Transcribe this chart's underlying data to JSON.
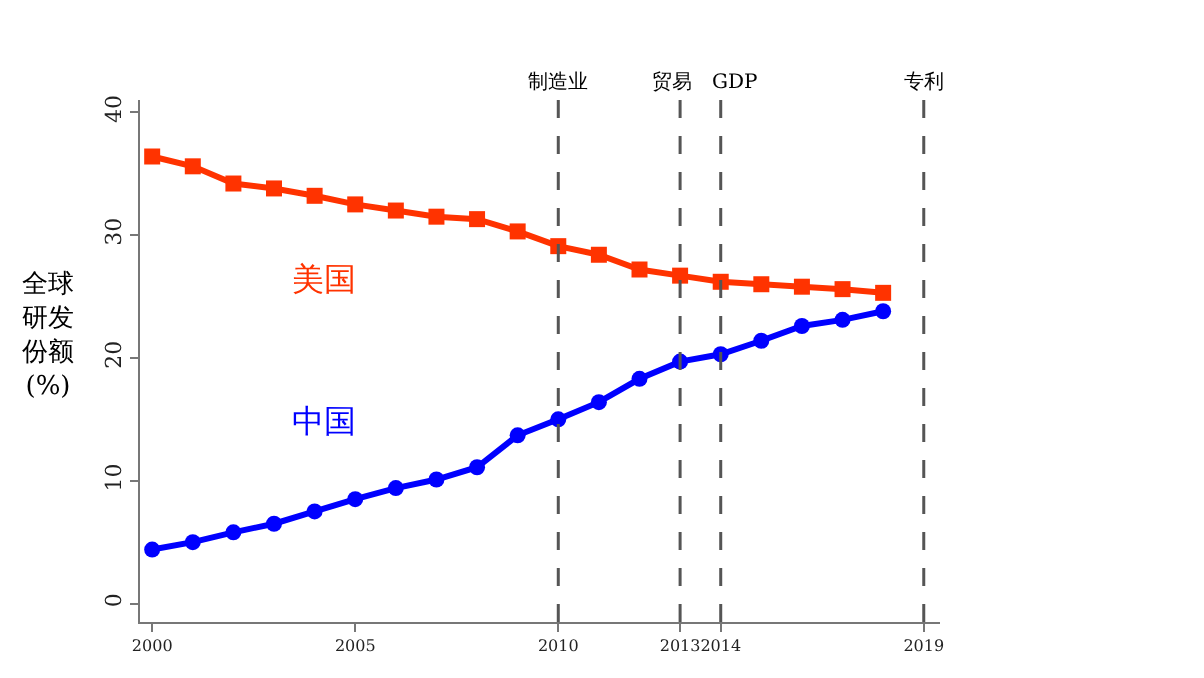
{
  "chart_data": {
    "type": "line",
    "ylabel": "全球研发份额(%)",
    "x": [
      2000,
      2001,
      2002,
      2003,
      2004,
      2005,
      2006,
      2007,
      2008,
      2009,
      2010,
      2011,
      2012,
      2013,
      2014,
      2015,
      2016,
      2017,
      2018
    ],
    "series": [
      {
        "name": "美国",
        "color": "#ff3300",
        "marker": "square",
        "values": [
          36.4,
          35.6,
          34.2,
          33.8,
          33.2,
          32.5,
          32.0,
          31.5,
          31.3,
          30.3,
          29.1,
          28.4,
          27.2,
          26.7,
          26.2,
          26.0,
          25.8,
          25.6,
          25.3
        ]
      },
      {
        "name": "中国",
        "color": "#0000ff",
        "marker": "circle",
        "values": [
          4.4,
          5.0,
          5.8,
          6.5,
          7.5,
          8.5,
          9.4,
          10.1,
          11.1,
          13.7,
          15.0,
          16.4,
          18.3,
          19.7,
          20.3,
          21.4,
          22.6,
          23.1,
          23.8
        ]
      }
    ],
    "xlim": [
      1999.7,
      2019.4
    ],
    "xticks": [
      2000,
      2005,
      2010,
      2013,
      2014,
      2019
    ],
    "ylim": [
      -1.5,
      41
    ],
    "yticks": [
      0,
      10,
      20,
      30,
      40
    ],
    "ref_lines": [
      {
        "axis": "x",
        "value": 2010,
        "label": "制造业",
        "line_style": "dashed"
      },
      {
        "axis": "x",
        "value": 2013,
        "label": "贸易",
        "line_style": "dashed"
      },
      {
        "axis": "x",
        "value": 2014,
        "label": "GDP",
        "line_style": "dashed"
      },
      {
        "axis": "x",
        "value": 2019,
        "label": "专利",
        "line_style": "dashed"
      }
    ],
    "grid": false,
    "legend": false
  }
}
